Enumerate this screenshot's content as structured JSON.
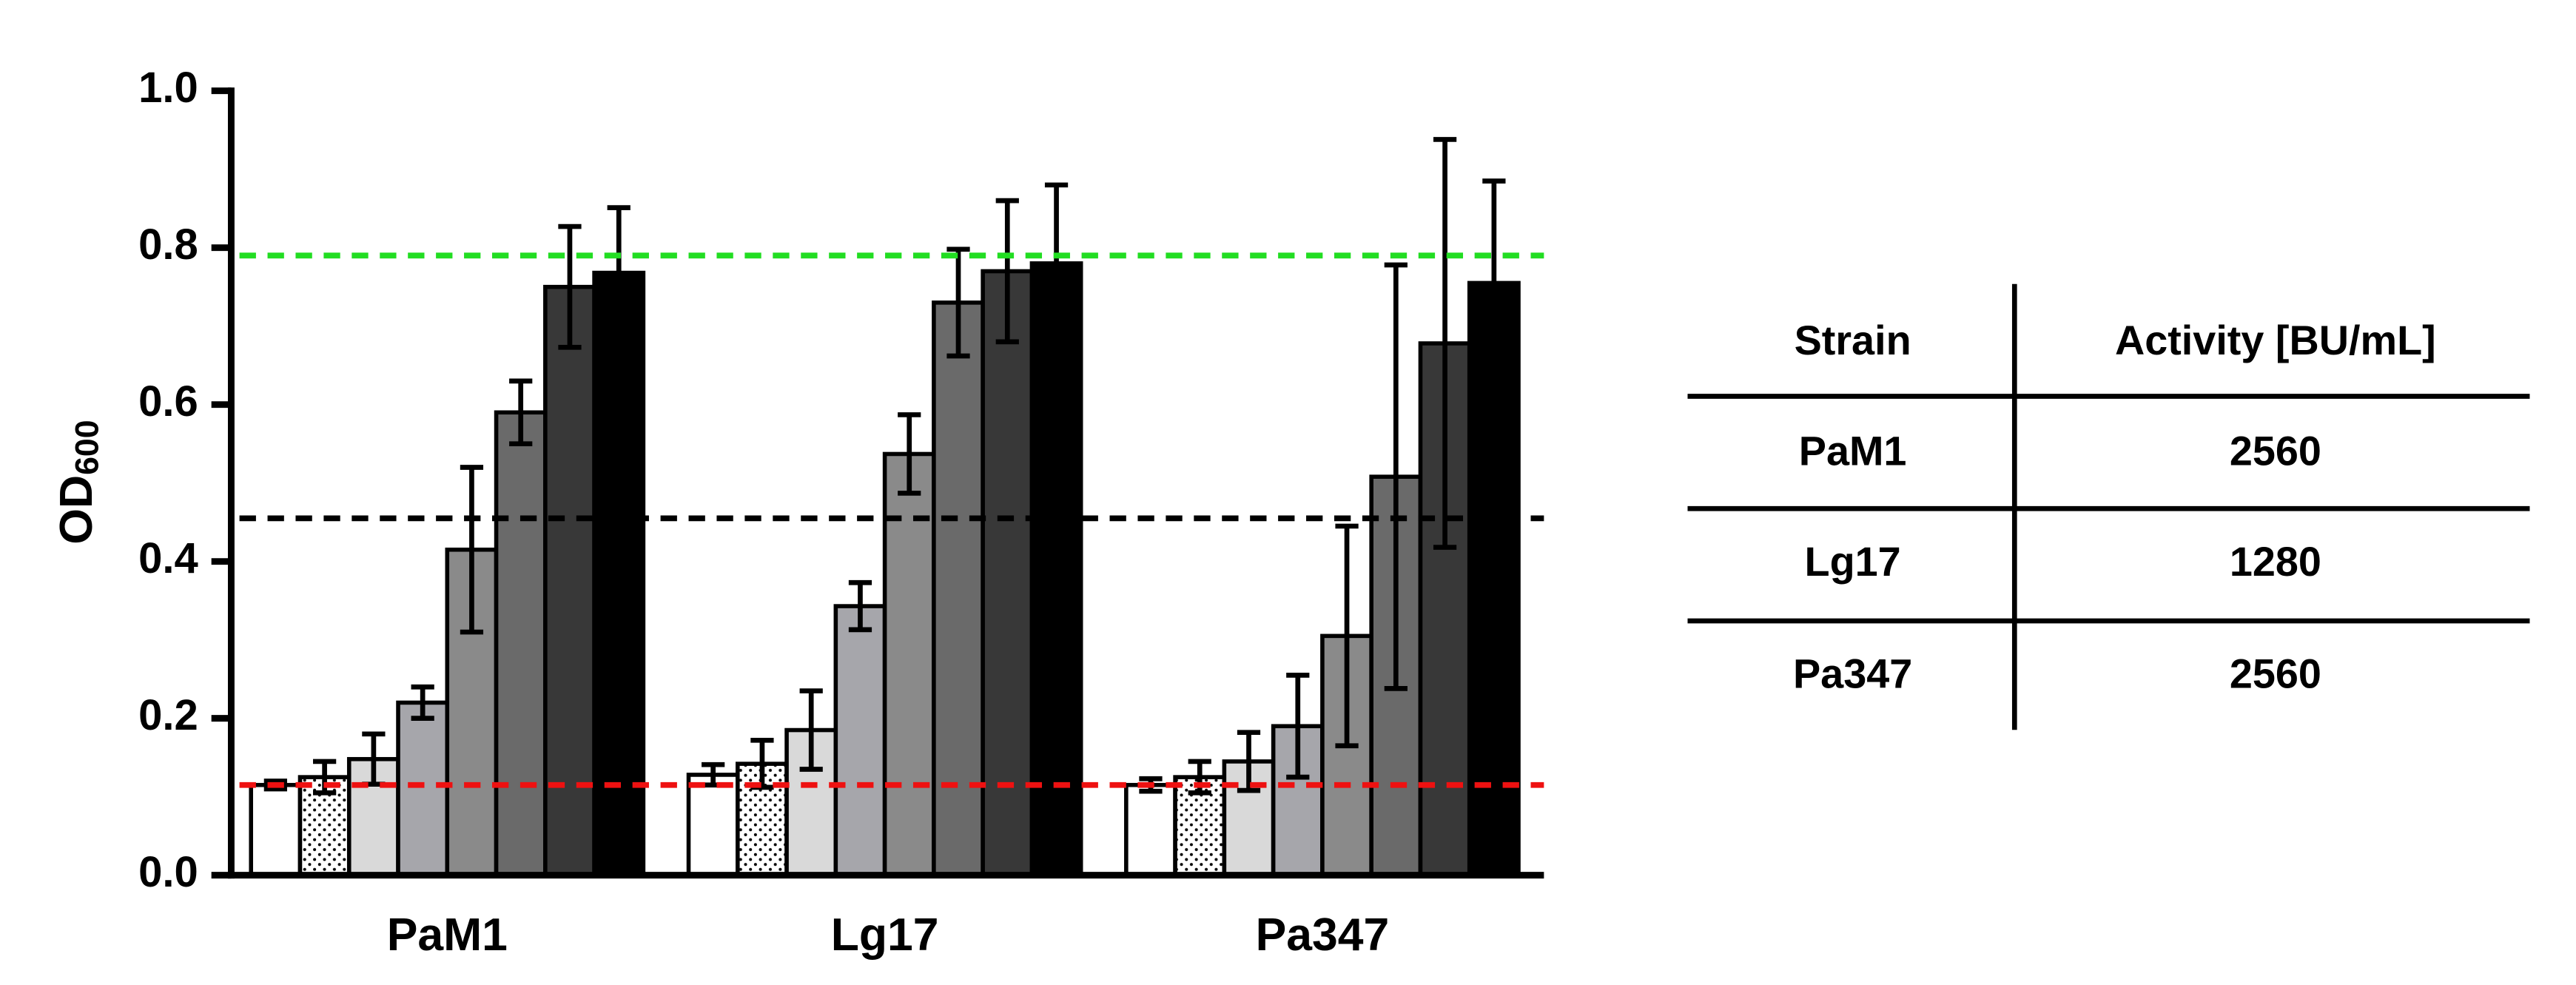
{
  "chart_data": {
    "type": "bar",
    "y_label": {
      "text": "OD",
      "subscript": "600"
    },
    "categories": [
      "PaM1",
      "Lg17",
      "Pa347"
    ],
    "series": [
      {
        "color": "#ffffff",
        "values": [
          0.115,
          0.128,
          0.115
        ],
        "errors": [
          0.005,
          0.013,
          0.008
        ]
      },
      {
        "color": "#ffffff",
        "pattern": "dots",
        "values": [
          0.125,
          0.142,
          0.125
        ],
        "errors": [
          0.02,
          0.03,
          0.02
        ]
      },
      {
        "color": "#d9d9d9",
        "values": [
          0.148,
          0.185,
          0.145
        ],
        "errors": [
          0.032,
          0.05,
          0.037
        ]
      },
      {
        "color": "#a6a6ab",
        "values": [
          0.22,
          0.343,
          0.19
        ],
        "errors": [
          0.02,
          0.03,
          0.065
        ]
      },
      {
        "color": "#8a8a8a",
        "values": [
          0.415,
          0.537,
          0.305
        ],
        "errors": [
          0.105,
          0.05,
          0.14
        ]
      },
      {
        "color": "#6a6a6a",
        "values": [
          0.59,
          0.73,
          0.508
        ],
        "errors": [
          0.04,
          0.068,
          0.27
        ]
      },
      {
        "color": "#383838",
        "values": [
          0.75,
          0.77,
          0.678
        ],
        "errors": [
          0.077,
          0.09,
          0.26
        ]
      },
      {
        "color": "#000000",
        "values": [
          0.768,
          0.78,
          0.755
        ],
        "errors": [
          0.083,
          0.1,
          0.13
        ]
      }
    ],
    "reference_lines": [
      {
        "value": 0.79,
        "color": "#22dd22"
      },
      {
        "value": 0.455,
        "color": "#000000"
      },
      {
        "value": 0.115,
        "color": "#ee1111"
      }
    ],
    "ylim": [
      0,
      1
    ],
    "yticks": [
      {
        "value": 0,
        "label": "0.0"
      },
      {
        "value": 0.2,
        "label": "0.2"
      },
      {
        "value": 0.4,
        "label": "0.4"
      },
      {
        "value": 0.6,
        "label": "0.6"
      },
      {
        "value": 0.8,
        "label": "0.8"
      },
      {
        "value": 1,
        "label": "1.0"
      }
    ],
    "grid": false
  },
  "table": {
    "header": [
      "Strain",
      "Activity [BU/mL]"
    ],
    "rows": [
      [
        "PaM1",
        "2560"
      ],
      [
        "Lg17",
        "1280"
      ],
      [
        "Pa347",
        "2560"
      ]
    ]
  }
}
